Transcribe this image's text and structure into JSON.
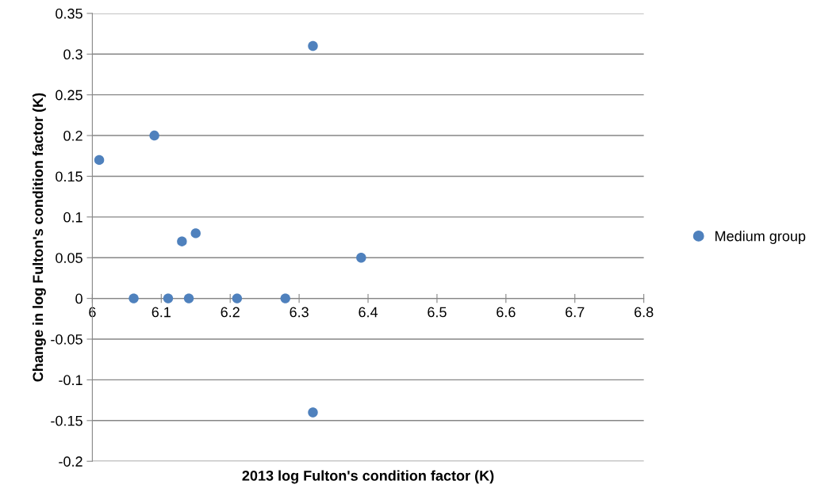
{
  "chart_data": {
    "type": "scatter",
    "xlabel": "2013 log Fulton's condition factor (K)",
    "ylabel": "Change in log Fulton's condition factor (K)",
    "series": [
      {
        "name": "Medium group",
        "color": "#4f81bd",
        "x": [
          6.01,
          6.06,
          6.09,
          6.11,
          6.13,
          6.14,
          6.15,
          6.21,
          6.28,
          6.32,
          6.32,
          6.39
        ],
        "values": [
          0.17,
          0,
          0.2,
          0,
          0.07,
          0,
          0.08,
          0,
          0,
          0.31,
          -0.14,
          0.05
        ]
      }
    ],
    "xlim": [
      6,
      6.8
    ],
    "xticks": [
      6,
      6.1,
      6.2,
      6.3,
      6.4,
      6.5,
      6.6,
      6.7,
      6.8
    ],
    "ylim": [
      -0.2,
      0.35
    ],
    "yticks": [
      -0.2,
      -0.15,
      -0.1,
      -0.05,
      0,
      0.05,
      0.1,
      0.15,
      0.2,
      0.25,
      0.3,
      0.35
    ],
    "grid": "y",
    "legend": "right",
    "marker": "circle"
  }
}
